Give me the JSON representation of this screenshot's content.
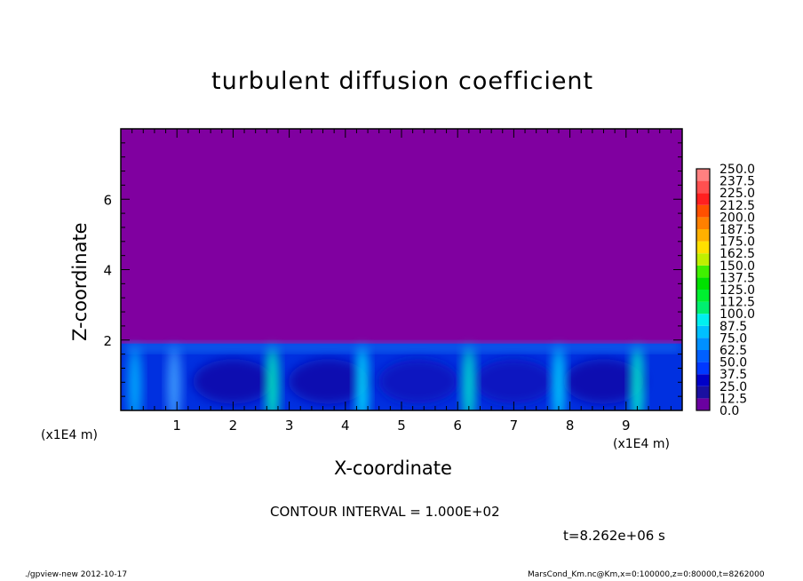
{
  "chart_data": {
    "type": "heatmap",
    "title": "turbulent diffusion coefficient",
    "xlabel": "X-coordinate",
    "ylabel": "Z-coordinate",
    "x_unit_label": "(x1E4 m)",
    "z_unit_label": "(x1E4 m)",
    "xlim": [
      0,
      100000
    ],
    "zlim": [
      0,
      80000
    ],
    "x_ticks": [
      "1",
      "2",
      "3",
      "4",
      "5",
      "6",
      "7",
      "8",
      "9"
    ],
    "z_ticks": [
      "2",
      "4",
      "6"
    ],
    "colorbar_levels": [
      "0.0",
      "12.5",
      "25.0",
      "37.5",
      "50.0",
      "62.5",
      "75.0",
      "87.5",
      "100.0",
      "112.5",
      "125.0",
      "137.5",
      "150.0",
      "162.5",
      "175.0",
      "187.5",
      "200.0",
      "212.5",
      "225.0",
      "237.5",
      "250.0"
    ],
    "colorbar_colors": [
      "#6a00a0",
      "#1a10a0",
      "#0000c8",
      "#0010f0",
      "#0038ff",
      "#0060ff",
      "#0090ff",
      "#00c0ff",
      "#00f0f0",
      "#00f0a0",
      "#00f070",
      "#00f030",
      "#00e000",
      "#40f000",
      "#80f000",
      "#c0f000",
      "#ffe000",
      "#ffb000",
      "#ff8000",
      "#ff5000",
      "#ff0000",
      "#ff2020",
      "#ff5050",
      "#ff8080"
    ],
    "background_value_color": "#8000a0",
    "turbulent_layer_top_z": 19000,
    "contour_interval": "CONTOUR INTERVAL = 1.000E+02",
    "time": "t=8.262e+06 s"
  },
  "footer": {
    "left": "./gpview-new   2012-10-17",
    "right": "MarsCond_Km.nc@Km,x=0:100000,z=0:80000,t=8262000"
  }
}
